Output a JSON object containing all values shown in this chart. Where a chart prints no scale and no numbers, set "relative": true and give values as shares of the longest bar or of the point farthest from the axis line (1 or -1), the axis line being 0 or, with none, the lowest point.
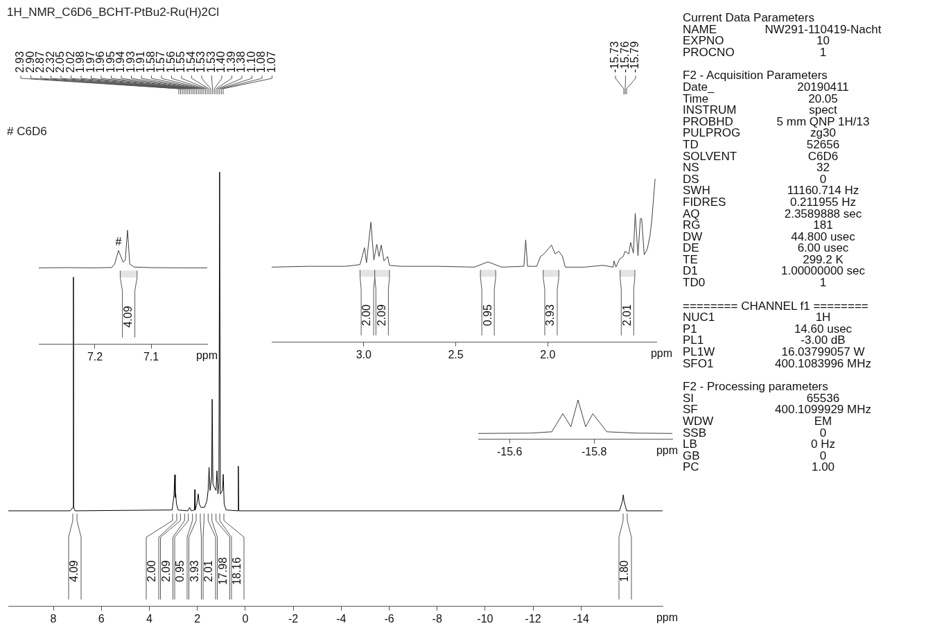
{
  "chart_data": [
    {
      "type": "line",
      "title": "1H_NMR_C6D6_BCHT-PtBu2-Ru(H)2Cl",
      "xlabel": "ppm",
      "relative": true,
      "color": "#000000",
      "x": [
        9.88,
        7.3,
        7.175,
        7.165,
        7.155,
        7.1,
        3.05,
        3.0,
        2.97,
        2.94,
        2.92,
        2.9,
        2.87,
        2.8,
        2.4,
        2.32,
        2.25,
        2.12,
        2.105,
        2.09,
        2.02,
        1.96,
        1.92,
        1.85,
        1.7,
        1.6,
        1.55,
        1.51,
        1.47,
        1.4,
        1.38,
        1.35,
        1.3,
        1.22,
        1.18,
        1.14,
        1.1,
        1.07,
        1.04,
        0.95,
        0.92,
        0.88,
        0.8,
        0.31,
        0.29,
        0.27,
        -15.6,
        -15.73,
        -15.76,
        -15.79,
        -15.9,
        -17.4
      ],
      "values": [
        0.22,
        0.22,
        0.228,
        0.758,
        0.228,
        0.22,
        0.222,
        0.243,
        0.259,
        0.303,
        0.251,
        0.259,
        0.236,
        0.222,
        0.22,
        0.228,
        0.22,
        0.222,
        0.269,
        0.222,
        0.236,
        0.259,
        0.236,
        0.228,
        0.228,
        0.243,
        0.267,
        0.32,
        0.267,
        0.298,
        0.477,
        0.282,
        0.275,
        0.267,
        0.312,
        0.259,
        0.282,
        1.0,
        0.259,
        0.267,
        0.304,
        0.236,
        0.222,
        0.22,
        0.323,
        0.22,
        0.22,
        0.243,
        0.257,
        0.243,
        0.22,
        0.22
      ],
      "xlim": [
        9.88,
        -17.4
      ],
      "xticks": [
        8,
        6,
        4,
        2,
        0,
        -2,
        -4,
        -6,
        -8,
        -10,
        -12,
        -14
      ],
      "annotations": [
        "# C6D6",
        "2.93",
        "2.90",
        "2.87",
        "2.32",
        "2.05",
        "2.02",
        "1.98",
        "1.97",
        "1.96",
        "1.95",
        "1.94",
        "1.93",
        "1.91",
        "1.58",
        "1.57",
        "1.56",
        "1.55",
        "1.54",
        "1.53",
        "1.53",
        "1.40",
        "1.39",
        "1.38",
        "1.10",
        "1.08",
        "1.07",
        "-15.73",
        "-15.76",
        "-15.79",
        "4.09",
        "2.00",
        "2.09",
        "0.95",
        "3.93",
        "2.01",
        "17.98",
        "18.16",
        "1.80"
      ]
    },
    {
      "type": "line",
      "xlabel": "ppm",
      "relative": true,
      "color": "#404040",
      "x": [
        7.3,
        7.25,
        7.2,
        7.17,
        7.165,
        7.158,
        7.15,
        7.146,
        7.142,
        7.138,
        7.13,
        7.1,
        7.05,
        7.0
      ],
      "values": [
        0.67,
        0.672,
        0.67,
        0.673,
        0.703,
        0.822,
        0.72,
        0.736,
        1.0,
        0.703,
        0.677,
        0.672,
        0.67,
        0.67
      ],
      "xlim": [
        7.3,
        7.0
      ],
      "xticks": [
        7.2,
        7.1
      ],
      "annotations": [
        {
          "text": "#",
          "x": 7.158,
          "y": 0.822
        }
      ],
      "bands": [
        {
          "axis": "x",
          "from": 7.155,
          "to": 7.125,
          "label": "4.09"
        }
      ]
    },
    {
      "type": "line",
      "xlabel": "ppm",
      "relative": true,
      "color": "#404040",
      "x": [
        3.5,
        3.3,
        3.1,
        3.05,
        3.02,
        2.996,
        2.985,
        2.961,
        2.945,
        2.929,
        2.917,
        2.905,
        2.89,
        2.87,
        2.86,
        2.8,
        2.6,
        2.4,
        2.325,
        2.25,
        2.13,
        2.12,
        2.11,
        2.06,
        2.04,
        2.025,
        2.0,
        1.98,
        1.96,
        1.94,
        1.92,
        1.905,
        1.8,
        1.7,
        1.645,
        1.64,
        1.63,
        1.61,
        1.59,
        1.58,
        1.56,
        1.55,
        1.535,
        1.525,
        1.51,
        1.497,
        1.49,
        1.476,
        1.46,
        1.445,
        1.435,
        1.417
      ],
      "values": [
        0.46,
        0.465,
        0.465,
        0.471,
        0.476,
        0.579,
        0.487,
        0.735,
        0.503,
        0.6,
        0.525,
        0.595,
        0.498,
        0.525,
        0.471,
        0.465,
        0.465,
        0.46,
        0.492,
        0.46,
        0.465,
        0.627,
        0.465,
        0.465,
        0.525,
        0.536,
        0.568,
        0.595,
        0.541,
        0.557,
        0.525,
        0.46,
        0.46,
        0.471,
        0.46,
        0.498,
        0.46,
        0.509,
        0.525,
        0.557,
        0.541,
        0.611,
        0.546,
        0.789,
        0.53,
        0.757,
        0.757,
        0.536,
        0.568,
        0.649,
        0.746,
        1.0
      ],
      "xlim": [
        3.5,
        1.41
      ],
      "xticks": [
        {
          "value": 3,
          "label": "3.0"
        },
        2.5,
        {
          "value": 2,
          "label": "2.0"
        }
      ],
      "bands": [
        {
          "axis": "x",
          "from": 3.02,
          "to": 2.94,
          "label": "2.00"
        },
        {
          "axis": "x",
          "from": 2.94,
          "to": 2.86,
          "label": "2.09"
        },
        {
          "axis": "x",
          "from": 2.366,
          "to": 2.283,
          "label": "0.95"
        },
        {
          "axis": "x",
          "from": 2.025,
          "to": 1.94,
          "label": "3.93"
        },
        {
          "axis": "x",
          "from": 1.607,
          "to": 1.527,
          "label": "2.01"
        }
      ]
    },
    {
      "type": "line",
      "xlabel": "ppm",
      "relative": true,
      "color": "#404040",
      "x": [
        -15.526,
        -15.65,
        -15.7,
        -15.726,
        -15.745,
        -15.762,
        -15.78,
        -15.797,
        -15.83,
        -15.9,
        -15.985
      ],
      "values": [
        0.15,
        0.159,
        0.193,
        0.652,
        0.32,
        1.0,
        0.32,
        0.652,
        0.193,
        0.159,
        0.15
      ],
      "xlim": [
        -15.526,
        -15.985
      ],
      "xticks": [
        -15.6,
        -15.8
      ]
    },
    {
      "type": "other",
      "annotations": [
        "Current Data Parameters",
        "NAME\tNW291-110419-Nacht",
        "EXPNO\t10",
        "PROCNO\t1",
        "F2 - Acquisition Parameters",
        "Date_\t20190411",
        "Time\t20.05",
        "INSTRUM\tspect",
        "PROBHD\t5 mm QNP 1H/13",
        "PULPROG\tzg30",
        "TD\t52656",
        "SOLVENT\tC6D6",
        "NS\t32",
        "DS\t0",
        "SWH\t11160.714 Hz",
        "FIDRES\t0.211955 Hz",
        "AQ\t2.3589888 sec",
        "RG\t181",
        "DW\t44.800 usec",
        "DE\t6.00 usec",
        "TE\t299.2 K",
        "D1\t1.00000000 sec",
        "TD0\t1",
        "======== CHANNEL f1 ========",
        "NUC1\t1H",
        "P1\t14.60 usec",
        "PL1\t-3.00 dB",
        "PL1W\t16.03799057 W",
        "SFO1\t400.1083996 MHz",
        "F2 - Processing parameters",
        "SI\t65536",
        "SF\t400.1099929 MHz",
        "WDW\tEM",
        "SSB\t0",
        "LB\t0 Hz",
        "GB\t0",
        "PC\t1.00"
      ]
    }
  ]
}
